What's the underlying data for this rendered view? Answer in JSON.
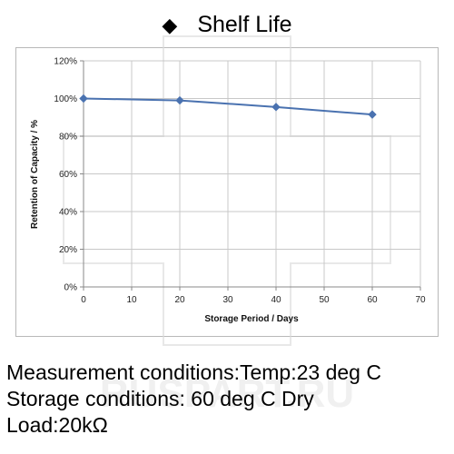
{
  "header": {
    "bullet": "◆",
    "title": "Shelf  Life"
  },
  "chart_data": {
    "type": "line",
    "title": "",
    "xlabel": "Storage Period / Days",
    "ylabel": "Retention of Capacity / %",
    "xlim": [
      0,
      70
    ],
    "ylim": [
      0,
      120
    ],
    "x_ticks": [
      "0",
      "10",
      "20",
      "30",
      "40",
      "50",
      "60",
      "70"
    ],
    "y_ticks": [
      "0%",
      "20%",
      "40%",
      "60%",
      "80%",
      "100%",
      "120%"
    ],
    "grid": "horizontal and vertical",
    "legend": "none",
    "series": [
      {
        "color": "#4a72b0",
        "marker": "diamond",
        "x": [
          0,
          20,
          40,
          60
        ],
        "y": [
          100,
          99,
          95.5,
          91.5
        ]
      }
    ]
  },
  "conditions": {
    "line1": "Measurement conditions:Temp:23 deg C",
    "line2": "Storage conditions: 60 deg C Dry",
    "line3": "Load:20kΩ"
  },
  "watermark": {
    "text": "RUSPART.RU"
  }
}
